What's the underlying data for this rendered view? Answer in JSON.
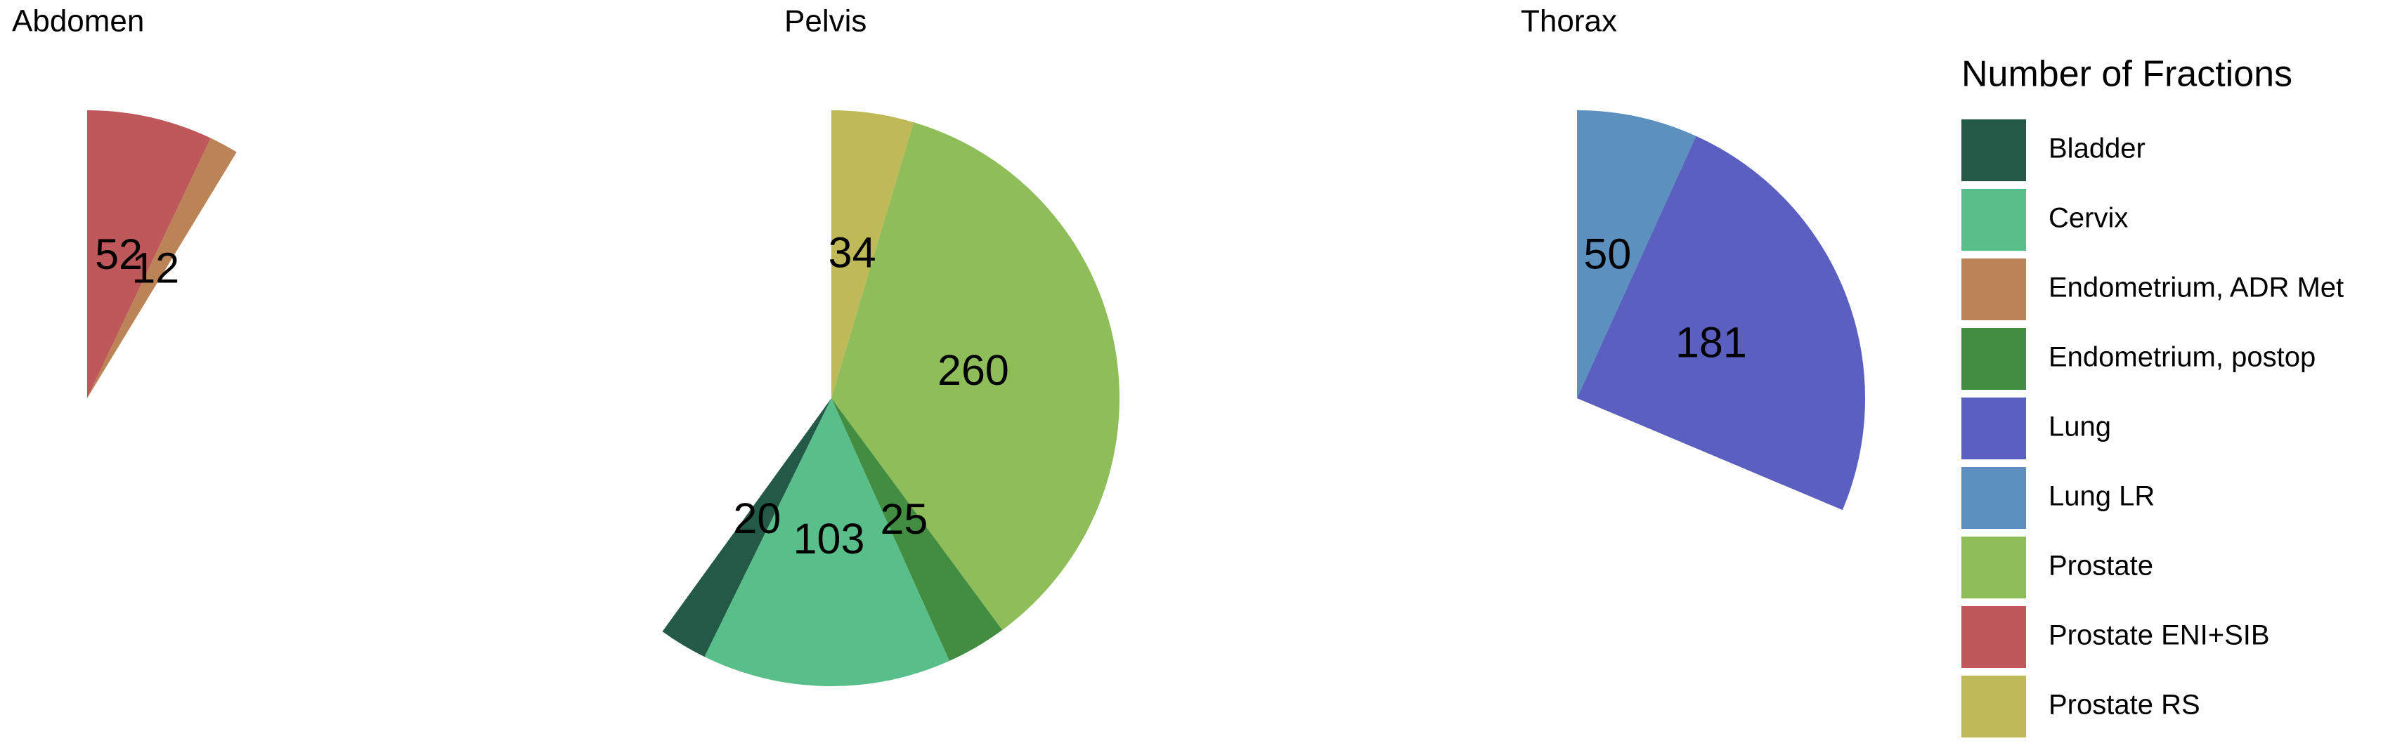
{
  "chart_data": {
    "type": "pie",
    "legend_title": "Number of Fractions",
    "legend": [
      {
        "name": "Bladder",
        "color": "#225947"
      },
      {
        "name": "Cervix",
        "color": "#59bf8a"
      },
      {
        "name": "Endometrium, ADR Met",
        "color": "#bb8457"
      },
      {
        "name": "Endometrium, postop",
        "color": "#428d42"
      },
      {
        "name": "Lung",
        "color": "#5b5fbf"
      },
      {
        "name": "Lung LR",
        "color": "#5b90bf"
      },
      {
        "name": "Prostate",
        "color": "#8fbd5a"
      },
      {
        "name": "Prostate ENI+SIB",
        "color": "#bf585a"
      },
      {
        "name": "Prostate RS",
        "color": "#bfb958"
      }
    ],
    "facets": [
      {
        "title": "Abdomen",
        "categories": [
          "Prostate ENI+SIB",
          "Endometrium, ADR Met"
        ],
        "values": [
          52,
          12
        ]
      },
      {
        "title": "Pelvis",
        "categories": [
          "Prostate RS",
          "Prostate",
          "Endometrium, postop",
          "Cervix",
          "Bladder"
        ],
        "values": [
          34,
          260,
          25,
          103,
          20
        ]
      },
      {
        "title": "Thorax",
        "categories": [
          "Lung LR",
          "Lung"
        ],
        "values": [
          50,
          181
        ]
      }
    ]
  }
}
